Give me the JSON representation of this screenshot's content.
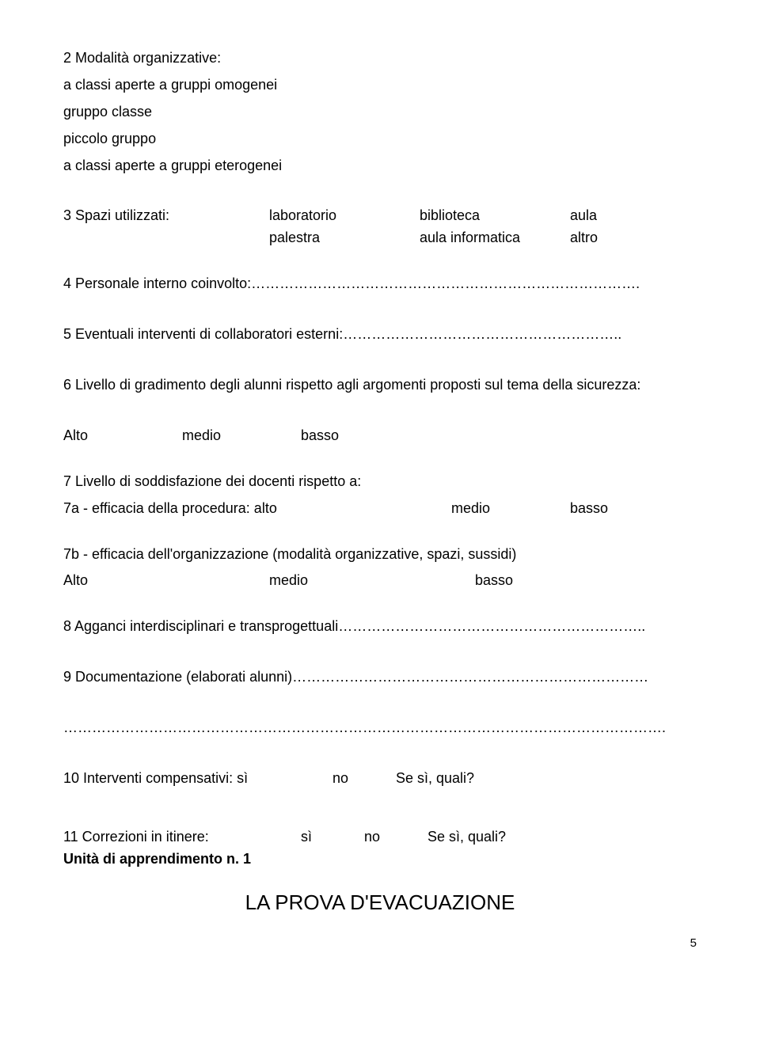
{
  "q2": {
    "heading": "2  Modalità organizzative:",
    "items": [
      "a classi aperte a gruppi omogenei",
      "gruppo classe",
      "piccolo gruppo",
      "a classi aperte a gruppi eterogenei"
    ]
  },
  "q3": {
    "label": "3  Spazi utilizzati:",
    "row1": [
      "laboratorio",
      "biblioteca",
      "aula"
    ],
    "row2": [
      "palestra",
      "aula informatica",
      "altro"
    ]
  },
  "q4": "4  Personale interno coinvolto:……………………………………………………………………….",
  "q5": "5  Eventuali interventi di collaboratori esterni:…………………………………………………..",
  "q6": {
    "text": "6  Livello di gradimento degli alunni rispetto agli argomenti proposti sul tema della sicurezza:",
    "options": [
      "Alto",
      "medio",
      "basso"
    ]
  },
  "q7": {
    "text": "7  Livello di soddisfazione dei docenti rispetto a:",
    "a_label": "7a  - efficacia della procedura: alto",
    "a_opts": [
      "medio",
      "basso"
    ],
    "b_text": "7b  - efficacia dell'organizzazione (modalità organizzative, spazi, sussidi)",
    "b_opts": [
      "Alto",
      "medio",
      "basso"
    ]
  },
  "q8": "8  Agganci interdisciplinari e transprogettuali………………………………………………………..",
  "q9": "9  Documentazione (elaborati alunni)…………………………………………………………………",
  "q9b": "……………………………………………………………………………………………………………….",
  "q10": {
    "label": "10  Interventi compensativi:  sì",
    "no": "no",
    "tail": "Se sì, quali?"
  },
  "q11": {
    "label": "11  Correzioni in itinere:",
    "si": "sì",
    "no": "no",
    "tail": "Se sì, quali?"
  },
  "unit": "Unità di apprendimento n. 1",
  "title": "LA PROVA D'EVACUAZIONE",
  "page": "5"
}
